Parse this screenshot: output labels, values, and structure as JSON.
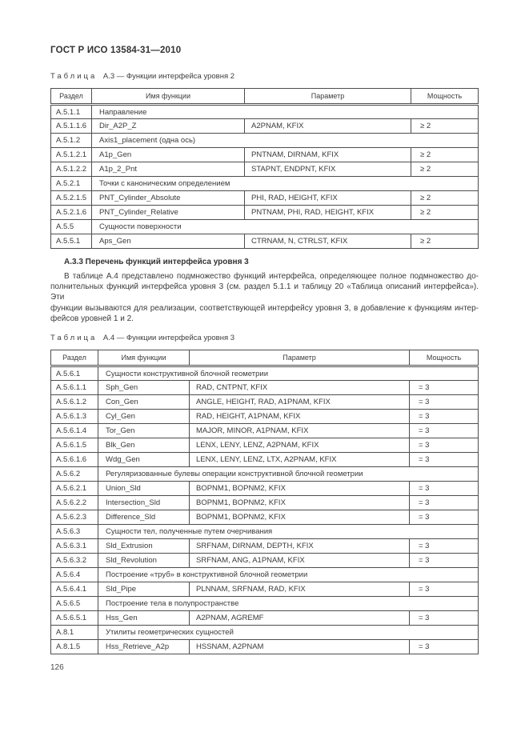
{
  "page": {
    "header_title": "ГОСТ Р ИСО 13584-31—2010",
    "page_number": "126"
  },
  "table_a3": {
    "caption_label": "Таблица",
    "caption_text": "А.3 — Функции интерфейса уровня 2",
    "columns": [
      "Раздел",
      "Имя функции",
      "Параметр",
      "Мощность"
    ],
    "rows": [
      {
        "section": "А.5.1.1",
        "name": "Направление"
      },
      {
        "section": "А.5.1.1.6",
        "name": "Dir_A2P_Z",
        "param": "A2PNAM, KFIX",
        "card": "≥ 2"
      },
      {
        "section": "А.5.1.2",
        "name": "Axis1_placement (одна ось)"
      },
      {
        "section": "А.5.1.2.1",
        "name": "A1p_Gen",
        "param": "PNTNAM, DIRNAM, KFIX",
        "card": "≥ 2"
      },
      {
        "section": "А.5.1.2.2",
        "name": "A1p_2_Pnt",
        "param": "STAPNT, ENDPNT, KFIX",
        "card": "≥ 2"
      },
      {
        "section": "А.5.2.1",
        "name": "Точки с каноническим определением"
      },
      {
        "section": "А.5.2.1.5",
        "name": "PNT_Cylinder_Absolute",
        "param": "PHI, RAD, HEIGHT, KFIX",
        "card": "≥ 2"
      },
      {
        "section": "А.5.2.1.6",
        "name": "PNT_Cylinder_Relative",
        "param": "PNTNAM, PHI, RAD, HEIGHT, KFIX",
        "card": "≥ 2"
      },
      {
        "section": "А.5.5",
        "name": "Сущности поверхности"
      },
      {
        "section": "А.5.5.1",
        "name": "Aps_Gen",
        "param": "CTRNAM, N, CTRLST, KFIX",
        "card": "≥ 2"
      }
    ]
  },
  "section_a33": {
    "heading": "А.3.3 Перечень функций интерфейса уровня 3",
    "paragraph_lines": [
      "В таблице А.4 представлено подмножество функций интерфейса, определяющее полное подмножество до-",
      "полнительных функций интерфейса уровня 3 (см. раздел 5.1.1 и таблицу 20 «Таблица описаний интерфейса»). Эти",
      "функции вызываются для реализации, соответствующей интерфейсу уровня 3, в добавление к функциям интер-",
      "фейсов уровней 1 и 2."
    ]
  },
  "table_a4": {
    "caption_label": "Таблица",
    "caption_text": "А.4 — Функции интерфейса уровня 3",
    "columns": [
      "Раздел",
      "Имя функции",
      "Параметр",
      "Мощность"
    ],
    "rows": [
      {
        "section": "А.5.6.1",
        "name": "Сущности конструктивной блочной геометрии"
      },
      {
        "section": "А.5.6.1.1",
        "name": "Sph_Gen",
        "param": "RAD, CNTPNT, KFIX",
        "card": "= 3"
      },
      {
        "section": "А.5.6.1.2",
        "name": "Con_Gen",
        "param": "ANGLE, HEIGHT, RAD, A1PNAM, KFIX",
        "card": "= 3"
      },
      {
        "section": "А.5.6.1.3",
        "name": "Cyl_Gen",
        "param": "RAD, HEIGHT, A1PNAM, KFIX",
        "card": "= 3"
      },
      {
        "section": "А.5.6.1.4",
        "name": "Tor_Gen",
        "param": "MAJOR, MINOR, A1PNAM, KFIX",
        "card": "= 3"
      },
      {
        "section": "А.5.6.1.5",
        "name": "Blk_Gen",
        "param": "LENX, LENY, LENZ, A2PNAM, KFIX",
        "card": "= 3"
      },
      {
        "section": "А.5.6.1.6",
        "name": "Wdg_Gen",
        "param": "LENX, LENY, LENZ, LTX, A2PNAM, KFIX",
        "card": "= 3"
      },
      {
        "section": "А.5.6.2",
        "name": "Регуляризованные булевы операции конструктивной блочной геометрии"
      },
      {
        "section": "А.5.6.2.1",
        "name": "Union_Sld",
        "param": "BOPNM1, BOPNM2, KFIX",
        "card": "= 3"
      },
      {
        "section": "А.5.6.2.2",
        "name": "Intersection_Sld",
        "param": "BOPNM1, BOPNM2, KFIX",
        "card": "= 3"
      },
      {
        "section": "А.5.6.2.3",
        "name": "Difference_Sld",
        "param": "BOPNM1, BOPNM2, KFIX",
        "card": "= 3"
      },
      {
        "section": "А.5.6.3",
        "name": "Сущности тел, полученные путем очерчивания"
      },
      {
        "section": "А.5.6.3.1",
        "name": "Sld_Extrusion",
        "param": "SRFNAM, DIRNAM, DEPTH, KFIX",
        "card": "= 3"
      },
      {
        "section": "А.5.6.3.2",
        "name": "Sld_Revolution",
        "param": "SRFNAM, ANG, A1PNAM, KFIX",
        "card": "= 3"
      },
      {
        "section": "А.5.6.4",
        "name": "Построение «труб» в конструктивной блочной геометрии"
      },
      {
        "section": "А.5.6.4.1",
        "name": "Sld_Pipe",
        "param": "PLNNAM, SRFNAM, RAD, KFIX",
        "card": "= 3"
      },
      {
        "section": "А.5.6.5",
        "name": "Построение тела в полупространстве"
      },
      {
        "section": "А.5.6.5.1",
        "name": "Hss_Gen",
        "param": "A2PNAM, AGREMF",
        "card": "= 3"
      },
      {
        "section": "А.8.1",
        "name": "Утилиты геометрических сущностей"
      },
      {
        "section": "А.8.1.5",
        "name": "Hss_Retrieve_A2p",
        "param": "HSSNAM, A2PNAM",
        "card": "= 3"
      }
    ]
  }
}
